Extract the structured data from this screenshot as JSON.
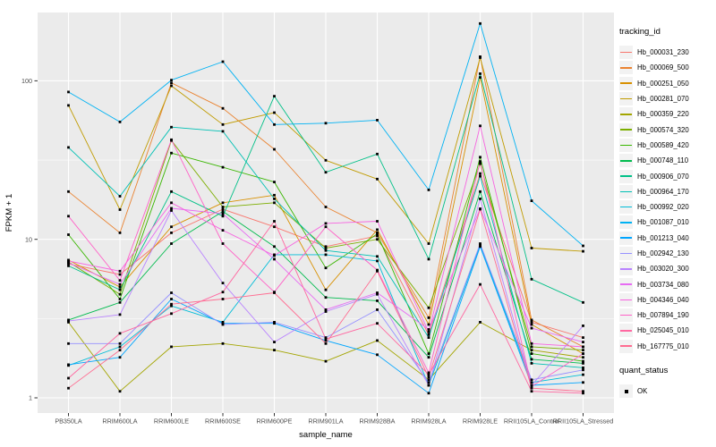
{
  "chart_data": {
    "type": "line",
    "title": "",
    "xlabel": "sample_name",
    "ylabel": "FPKM + 1",
    "y_scale": "log10",
    "y_ticks": [
      1,
      10,
      100
    ],
    "ylim": [
      1,
      270
    ],
    "grid": true,
    "colors": {
      "panel_bg": "#EBEBEB",
      "grid": "#FFFFFF",
      "tick_label": "#4D4D4D",
      "axis_title": "#000000",
      "point": "#000000",
      "legend_key_bg": "#F2F2F2"
    },
    "categories": [
      "PB350LA",
      "RRIM600LA",
      "RRIM600LE",
      "RRIM600SE",
      "RRIM600PE",
      "RRIM901LA",
      "RRIM928BA",
      "RRIM928LA",
      "RRIM928LE",
      "RRII105LA_Control",
      "RRII105LA_Stressed"
    ],
    "legend": {
      "title": "tracking_id",
      "position": "right"
    },
    "quant_legend": {
      "title": "quant_status",
      "items": [
        {
          "label": "OK",
          "marker": "black-square"
        }
      ]
    },
    "series": [
      {
        "name": "Hb_000031_230",
        "color": "#F8766D",
        "values": [
          7.0,
          6.0,
          11.0,
          15.5,
          12.0,
          9.0,
          10.5,
          2.5,
          26.0,
          3.0,
          2.4
        ]
      },
      {
        "name": "Hb_000069_500",
        "color": "#EA8331",
        "values": [
          20.0,
          11.0,
          97.0,
          67.0,
          37.0,
          16.0,
          11.0,
          3.2,
          142.0,
          3.1,
          2.1
        ]
      },
      {
        "name": "Hb_000251_050",
        "color": "#D89000",
        "values": [
          7.4,
          5.0,
          12.0,
          17.0,
          19.0,
          4.8,
          11.5,
          2.9,
          105.0,
          2.9,
          1.9
        ]
      },
      {
        "name": "Hb_000281_070",
        "color": "#C09B00",
        "values": [
          70.0,
          15.4,
          93.0,
          53.0,
          63.0,
          31.5,
          24.0,
          9.4,
          140.0,
          8.8,
          8.4
        ]
      },
      {
        "name": "Hb_000359_220",
        "color": "#A3A500",
        "values": [
          3.0,
          1.1,
          2.1,
          2.2,
          2.0,
          1.7,
          2.3,
          1.3,
          3.0,
          2.0,
          1.8
        ]
      },
      {
        "name": "Hb_000574_320",
        "color": "#7CAE00",
        "values": [
          7.2,
          4.5,
          42.0,
          16.0,
          17.0,
          8.8,
          10.0,
          3.7,
          30.0,
          2.1,
          2.0
        ]
      },
      {
        "name": "Hb_000589_420",
        "color": "#39B600",
        "values": [
          10.7,
          4.2,
          35.0,
          28.5,
          23.0,
          6.6,
          10.8,
          1.9,
          33.0,
          1.9,
          1.7
        ]
      },
      {
        "name": "Hb_000748_110",
        "color": "#00BB4E",
        "values": [
          3.1,
          4.0,
          9.4,
          15.0,
          9.0,
          4.3,
          4.1,
          1.8,
          20.0,
          1.75,
          1.65
        ]
      },
      {
        "name": "Hb_000906_070",
        "color": "#00C087",
        "values": [
          6.8,
          4.8,
          20.0,
          14.0,
          80.0,
          26.5,
          34.5,
          7.5,
          111.0,
          5.6,
          4.0
        ]
      },
      {
        "name": "Hb_000964_170",
        "color": "#00C0B4",
        "values": [
          38.0,
          18.7,
          51.0,
          48.0,
          18.0,
          8.5,
          7.8,
          2.4,
          25.0,
          1.65,
          1.55
        ]
      },
      {
        "name": "Hb_000992_020",
        "color": "#00BCD8",
        "values": [
          1.6,
          2.1,
          3.8,
          3.0,
          8.0,
          8.0,
          7.3,
          1.2,
          9.2,
          1.25,
          1.4
        ]
      },
      {
        "name": "Hb_001087_010",
        "color": "#00B2F3",
        "values": [
          85.0,
          55.0,
          101.0,
          132.0,
          53.0,
          54.0,
          56.5,
          20.5,
          230.0,
          17.5,
          9.1
        ]
      },
      {
        "name": "Hb_001213_040",
        "color": "#00A5FF",
        "values": [
          1.62,
          1.8,
          4.2,
          2.95,
          2.95,
          2.3,
          1.87,
          1.07,
          9.0,
          1.2,
          1.25
        ]
      },
      {
        "name": "Hb_002942_130",
        "color": "#9590FF",
        "values": [
          2.2,
          2.2,
          4.6,
          2.9,
          3.0,
          2.4,
          3.6,
          1.25,
          9.4,
          1.3,
          1.5
        ]
      },
      {
        "name": "Hb_003020_300",
        "color": "#B983FF",
        "values": [
          3.05,
          3.35,
          15.2,
          5.3,
          2.25,
          3.5,
          4.5,
          1.2,
          18.0,
          1.2,
          2.85
        ]
      },
      {
        "name": "Hb_003734_080",
        "color": "#E76BF3",
        "values": [
          7.1,
          5.2,
          15.7,
          14.5,
          7.5,
          3.6,
          4.6,
          2.7,
          15.6,
          2.75,
          2.25
        ]
      },
      {
        "name": "Hb_004346_040",
        "color": "#F763E0",
        "values": [
          7.3,
          6.3,
          17.0,
          11.4,
          7.9,
          12.6,
          13.0,
          2.6,
          52.0,
          2.2,
          2.1
        ]
      },
      {
        "name": "Hb_007894_190",
        "color": "#FF61C7",
        "values": [
          14.0,
          5.5,
          42.5,
          9.4,
          4.65,
          12.0,
          6.4,
          1.44,
          31.0,
          1.18,
          1.9
        ]
      },
      {
        "name": "Hb_025045_010",
        "color": "#FF68A1",
        "values": [
          1.33,
          2.55,
          3.4,
          4.65,
          13.0,
          2.35,
          2.95,
          1.4,
          5.2,
          1.1,
          1.07
        ]
      },
      {
        "name": "Hb_167775_010",
        "color": "#FF6C91",
        "values": [
          1.15,
          2.0,
          3.9,
          4.2,
          4.6,
          2.2,
          6.3,
          1.35,
          15.5,
          1.15,
          1.1
        ]
      }
    ]
  }
}
